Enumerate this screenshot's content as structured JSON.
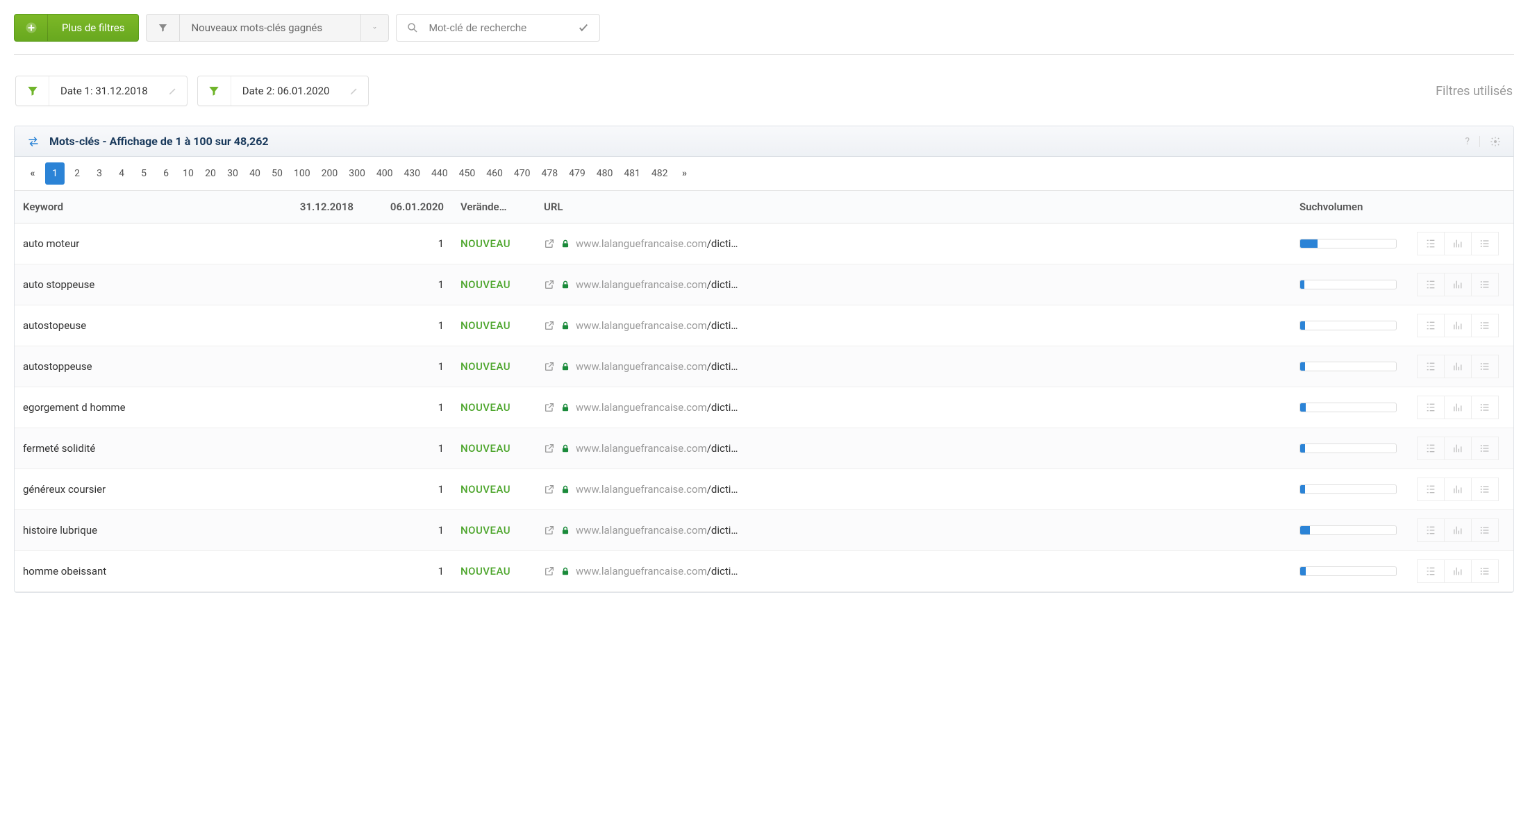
{
  "toolbar": {
    "more_filters_label": "Plus de filtres",
    "dropdown_label": "Nouveaux mots-clés gagnés",
    "search_placeholder": "Mot-clé de recherche"
  },
  "date_filters": {
    "date1_label": "Date 1: 31.12.2018",
    "date2_label": "Date 2: 06.01.2020",
    "filters_used_label": "Filtres utilisés"
  },
  "panel": {
    "title": "Mots-clés - Affichage de 1 à 100 sur 48,262"
  },
  "pagination": {
    "pages": [
      "1",
      "2",
      "3",
      "4",
      "5",
      "6",
      "10",
      "20",
      "30",
      "40",
      "50",
      "100",
      "200",
      "300",
      "400",
      "430",
      "440",
      "450",
      "460",
      "470",
      "478",
      "479",
      "480",
      "481",
      "482"
    ],
    "active": "1"
  },
  "columns": {
    "keyword": "Keyword",
    "d1": "31.12.2018",
    "d2": "06.01.2020",
    "change": "Verände…",
    "url": "URL",
    "volume": "Suchvolumen"
  },
  "url_display": {
    "domain": "www.lalanguefrancaise.com",
    "path": "/dicti…"
  },
  "change_label": "NOUVEAU",
  "rows": [
    {
      "keyword": "auto moteur",
      "d1": "",
      "d2": "1",
      "vol_pct": 18
    },
    {
      "keyword": "auto stoppeuse",
      "d1": "",
      "d2": "1",
      "vol_pct": 4
    },
    {
      "keyword": "autostopeuse",
      "d1": "",
      "d2": "1",
      "vol_pct": 5
    },
    {
      "keyword": "autostoppeuse",
      "d1": "",
      "d2": "1",
      "vol_pct": 5
    },
    {
      "keyword": "egorgement d homme",
      "d1": "",
      "d2": "1",
      "vol_pct": 6
    },
    {
      "keyword": "fermeté solidité",
      "d1": "",
      "d2": "1",
      "vol_pct": 5
    },
    {
      "keyword": "généreux coursier",
      "d1": "",
      "d2": "1",
      "vol_pct": 5
    },
    {
      "keyword": "histoire lubrique",
      "d1": "",
      "d2": "1",
      "vol_pct": 10
    },
    {
      "keyword": "homme obeissant",
      "d1": "",
      "d2": "1",
      "vol_pct": 6
    }
  ],
  "colors": {
    "green": "#6fb42a",
    "blue": "#2b83d6",
    "nouveau": "#4ca52b",
    "lock": "#1a8a3a",
    "grey_icon": "#999"
  }
}
